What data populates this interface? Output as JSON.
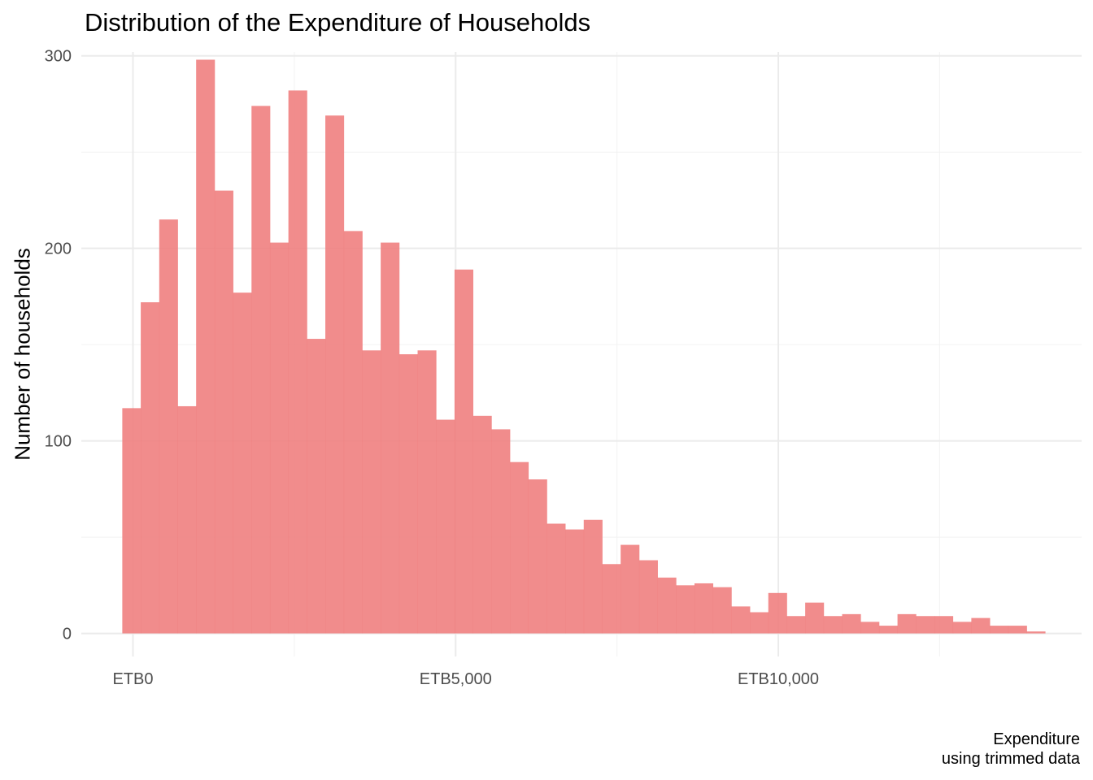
{
  "chart_data": {
    "type": "bar",
    "title": "Distribution of the Expenditure of Households",
    "xlabel_lines": [
      "Expenditure",
      "using trimmed data"
    ],
    "ylabel": "Number of households",
    "xlim": [
      -800,
      14700
    ],
    "ylim": [
      -12,
      302
    ],
    "x_ticks": [
      0,
      5000,
      10000
    ],
    "x_tick_labels": [
      "ETB0",
      "ETB5,000",
      "ETB10,000"
    ],
    "y_ticks": [
      0,
      100,
      200,
      300
    ],
    "y_tick_labels": [
      "0",
      "100",
      "200",
      "300"
    ],
    "grid": true,
    "bar_color": "#f08080",
    "bin_width": 286,
    "bins_start": -165,
    "counts": [
      117,
      172,
      215,
      118,
      298,
      230,
      177,
      274,
      203,
      282,
      153,
      269,
      209,
      147,
      203,
      145,
      147,
      111,
      189,
      113,
      106,
      89,
      80,
      57,
      54,
      59,
      36,
      46,
      38,
      29,
      25,
      26,
      24,
      14,
      11,
      21,
      9,
      16,
      9,
      10,
      6,
      4,
      10,
      9,
      9,
      6,
      8,
      4,
      4,
      1
    ]
  }
}
